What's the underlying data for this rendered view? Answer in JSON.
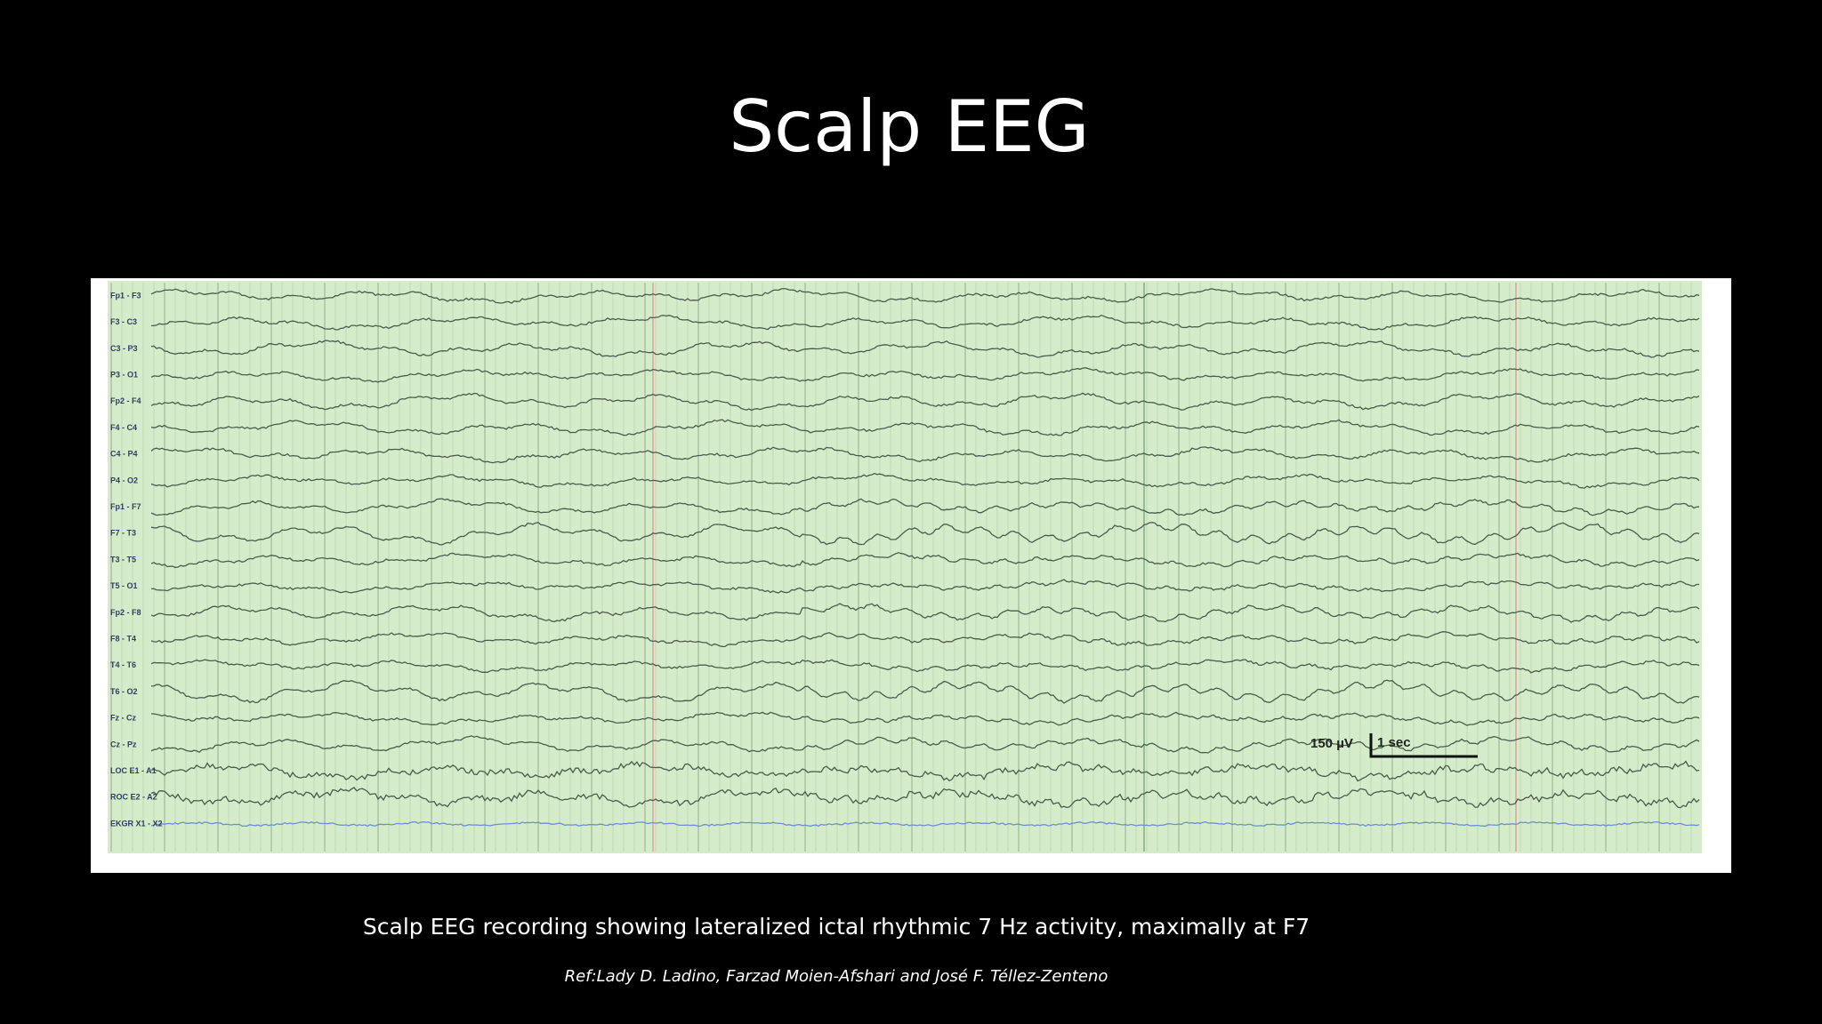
{
  "slide": {
    "title": "Scalp EEG",
    "figure": {
      "channels": [
        "Fp1 - F3",
        "F3 - C3",
        "C3 - P3",
        "P3 - O1",
        "Fp2 - F4",
        "F4 - C4",
        "C4 - P4",
        "P4 - O2",
        "Fp1 - F7",
        "F7 - T3",
        "T3 - T5",
        "T5 - O1",
        "Fp2 - F8",
        "F8 - T4",
        "T4 - T6",
        "T6 - O2",
        "Fz - Cz",
        "Cz - Pz",
        "LOC E1 - A1",
        "ROC E2 - A2",
        "EKGR X1 - X2"
      ],
      "scale_bar": {
        "amplitude": "150 µV",
        "time": "1 sec"
      }
    },
    "caption": "Scalp EEG recording showing lateralized ictal rhythmic 7 Hz activity, maximally at F7",
    "reference": "Ref:Lady D. Ladino, Farzad Moien-Afshari and José F. Téllez-Zenteno"
  }
}
